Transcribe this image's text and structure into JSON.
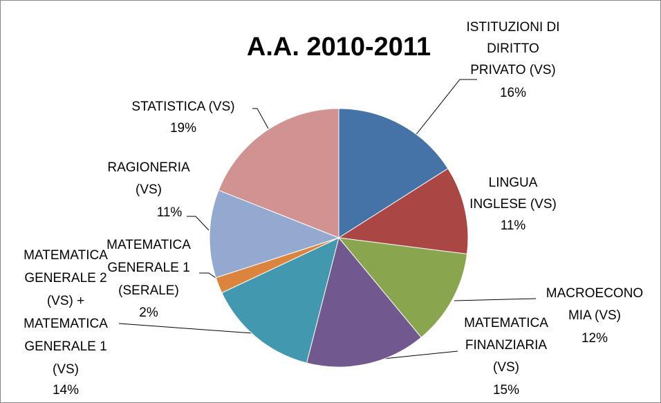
{
  "chart_data": {
    "type": "pie",
    "title": "A.A. 2010-2011",
    "categories": [
      "ISTITUZIONI DI\nDIRITTO\nPRIVATO (VS)",
      "LINGUA\nINGLESE (VS)",
      "MACROECONO\nMIA (VS)",
      "MATEMATICA\nFINANZIARIA\n(VS)",
      "MATEMATICA\nGENERALE 2\n(VS) +\nMATEMATICA\nGENERALE 1\n(VS)",
      "MATEMATICA\nGENERALE 1\n(SERALE)",
      "RAGIONERIA\n(VS)",
      "STATISTICA (VS)"
    ],
    "values": [
      16,
      11,
      12,
      15,
      14,
      2,
      11,
      19
    ],
    "value_labels": [
      "16%",
      "11%",
      "12%",
      "15%",
      "14%",
      "2%",
      "11%",
      "19%"
    ],
    "colors": [
      "#4572a7",
      "#aa4643",
      "#89a54e",
      "#71588f",
      "#4198af",
      "#db843d",
      "#93a9cf",
      "#d19392"
    ]
  }
}
